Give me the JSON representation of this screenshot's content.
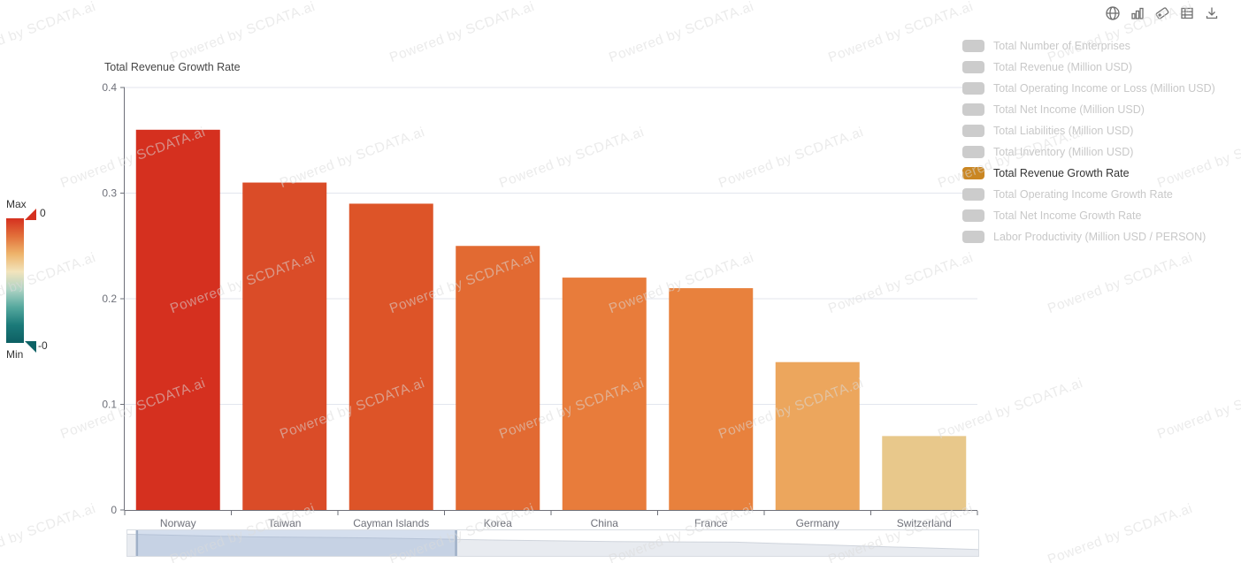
{
  "title": "Total Revenue Growth Rate",
  "watermark": {
    "text": "Powered by SCDATA.ai"
  },
  "toolbox": {
    "icons": [
      "globe-icon",
      "bar-chart-icon",
      "tag-icon",
      "data-table-icon",
      "download-icon"
    ]
  },
  "legend": {
    "active_color": "#ca8622",
    "inactive_color": "#cccccc",
    "items": [
      {
        "label": "Total Number of Enterprises",
        "active": false
      },
      {
        "label": "Total Revenue (Million USD)",
        "active": false
      },
      {
        "label": "Total Operating Income or Loss (Million USD)",
        "active": false
      },
      {
        "label": "Total Net Income (Million USD)",
        "active": false
      },
      {
        "label": "Total Liabilities (Million USD)",
        "active": false
      },
      {
        "label": "Total Inventory (Million USD)",
        "active": false
      },
      {
        "label": "Total Revenue Growth Rate",
        "active": true
      },
      {
        "label": "Total Operating Income Growth Rate",
        "active": false
      },
      {
        "label": "Total Net Income Growth Rate",
        "active": false
      },
      {
        "label": "Labor Productivity (Million USD / PERSON)",
        "active": false
      }
    ]
  },
  "visual_map": {
    "max_label": "Max",
    "min_label": "Min",
    "max_value": "0",
    "min_value": "-0",
    "top_handle_color": "#d5301f",
    "bottom_handle_color": "#0d6366",
    "gradient": [
      "#d5301f",
      "#e2703a",
      "#eeb46b",
      "#f2e4bc",
      "#aed3c4",
      "#55a89e",
      "#1b7a79",
      "#0d5f63"
    ]
  },
  "chart_data": {
    "type": "bar",
    "title": "Total Revenue Growth Rate",
    "categories": [
      "Norway",
      "Taiwan",
      "Cayman Islands",
      "Korea",
      "China",
      "France",
      "Germany",
      "Switzerland"
    ],
    "values": [
      0.36,
      0.31,
      0.29,
      0.25,
      0.22,
      0.21,
      0.14,
      0.07
    ],
    "bar_colors": [
      "#d5301f",
      "#da4c28",
      "#dd5428",
      "#e26a32",
      "#e87c3b",
      "#e8813d",
      "#eca65d",
      "#e8c88b"
    ],
    "xlabel": "",
    "ylabel": "",
    "ylim": [
      0,
      0.4
    ],
    "yticks": [
      0,
      0.1,
      0.2,
      0.3,
      0.4
    ],
    "ytick_labels": [
      "0",
      "0.1",
      "0.2",
      "0.3",
      "0.4"
    ],
    "grid": true,
    "legend_position": "right",
    "axis_color": "#6E7079",
    "grid_color": "#e3e6ee",
    "label_color": "#6E7079"
  },
  "datazoom": {
    "selection_start_pct": 1.1,
    "selection_end_pct": 38.6,
    "shadow_values": [
      0.36,
      0.31,
      0.29,
      0.25,
      0.22,
      0.21,
      0.14,
      0.07
    ],
    "selection_fill": "rgba(135,163,206,0.35)",
    "shadow_fill": "#e8ebf0",
    "shadow_line": "#cfd4dc",
    "handle_color": "#9fb0c7"
  }
}
